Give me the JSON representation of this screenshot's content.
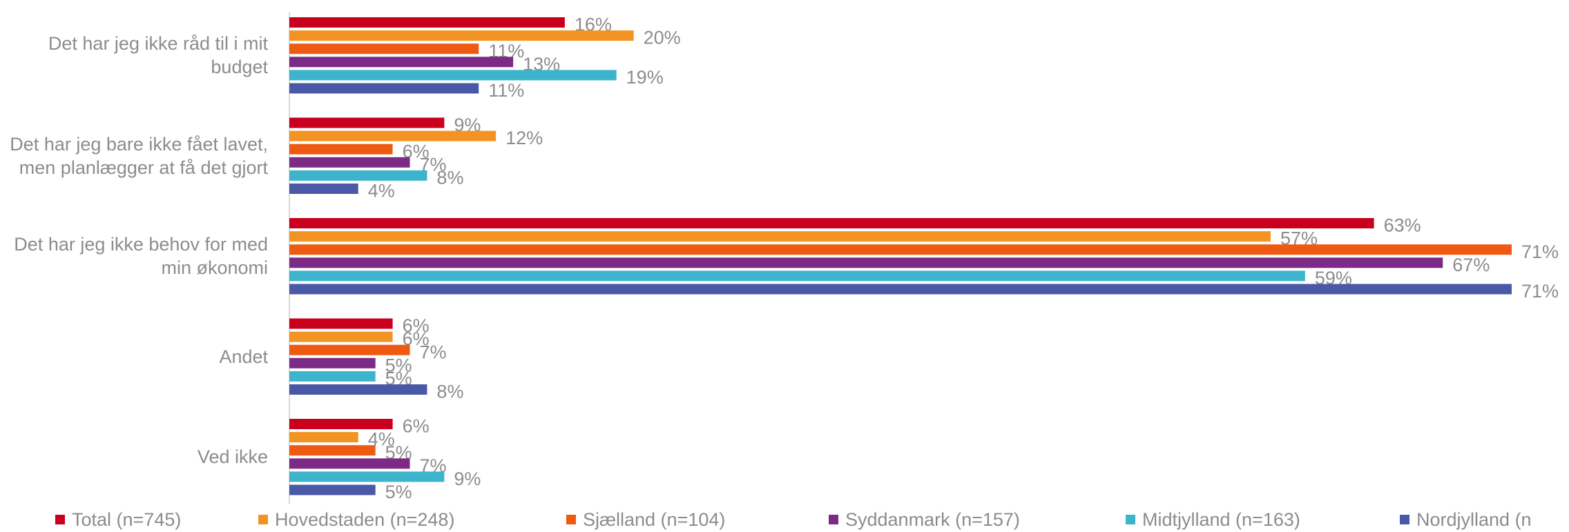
{
  "chart_data": {
    "type": "bar",
    "orientation": "horizontal",
    "categories": [
      "Det har jeg ikke råd til i mit budget",
      "Det har jeg bare ikke fået lavet, men planlægger at få det gjort",
      "Det har jeg ikke behov for med min økonomi",
      "Andet",
      "Ved ikke"
    ],
    "series": [
      {
        "name": "Total (n=745)",
        "color": "#c8001e",
        "values": [
          16,
          9,
          63,
          6,
          6
        ],
        "value_labels": [
          "16%",
          "9%",
          "63%",
          "6%",
          "6%"
        ]
      },
      {
        "name": "Hovedstaden (n=248)",
        "color": "#f39323",
        "values": [
          20,
          12,
          57,
          6,
          4
        ],
        "value_labels": [
          "20%",
          "12%",
          "57%",
          "6%",
          "4%"
        ]
      },
      {
        "name": "Sjælland (n=104)",
        "color": "#ee5a12",
        "values": [
          11,
          6,
          71,
          7,
          5
        ],
        "value_labels": [
          "11%",
          "6%",
          "71%",
          "7%",
          "5%"
        ]
      },
      {
        "name": "Syddanmark (n=157)",
        "color": "#7d2a86",
        "values": [
          13,
          7,
          67,
          5,
          7
        ],
        "value_labels": [
          "13%",
          "7%",
          "67%",
          "5%",
          "7%"
        ]
      },
      {
        "name": "Midtjylland (n=163)",
        "color": "#3db4cc",
        "values": [
          19,
          8,
          59,
          5,
          9
        ],
        "value_labels": [
          "19%",
          "8%",
          "59%",
          "5%",
          "9%"
        ]
      },
      {
        "name": "Nordjylland (n",
        "color": "#4a58a8",
        "values": [
          11,
          4,
          71,
          8,
          5
        ],
        "value_labels": [
          "11%",
          "4%",
          "71%",
          "8%",
          "5%"
        ]
      }
    ]
  }
}
